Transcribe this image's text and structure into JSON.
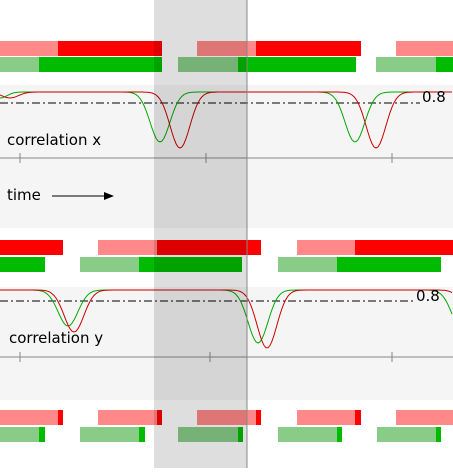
{
  "panel_x": {
    "threshold_label": "0.8",
    "label": "correlation x"
  },
  "time_label": "time",
  "panel_y": {
    "threshold_label": "0.8",
    "label": "correlation y"
  }
}
